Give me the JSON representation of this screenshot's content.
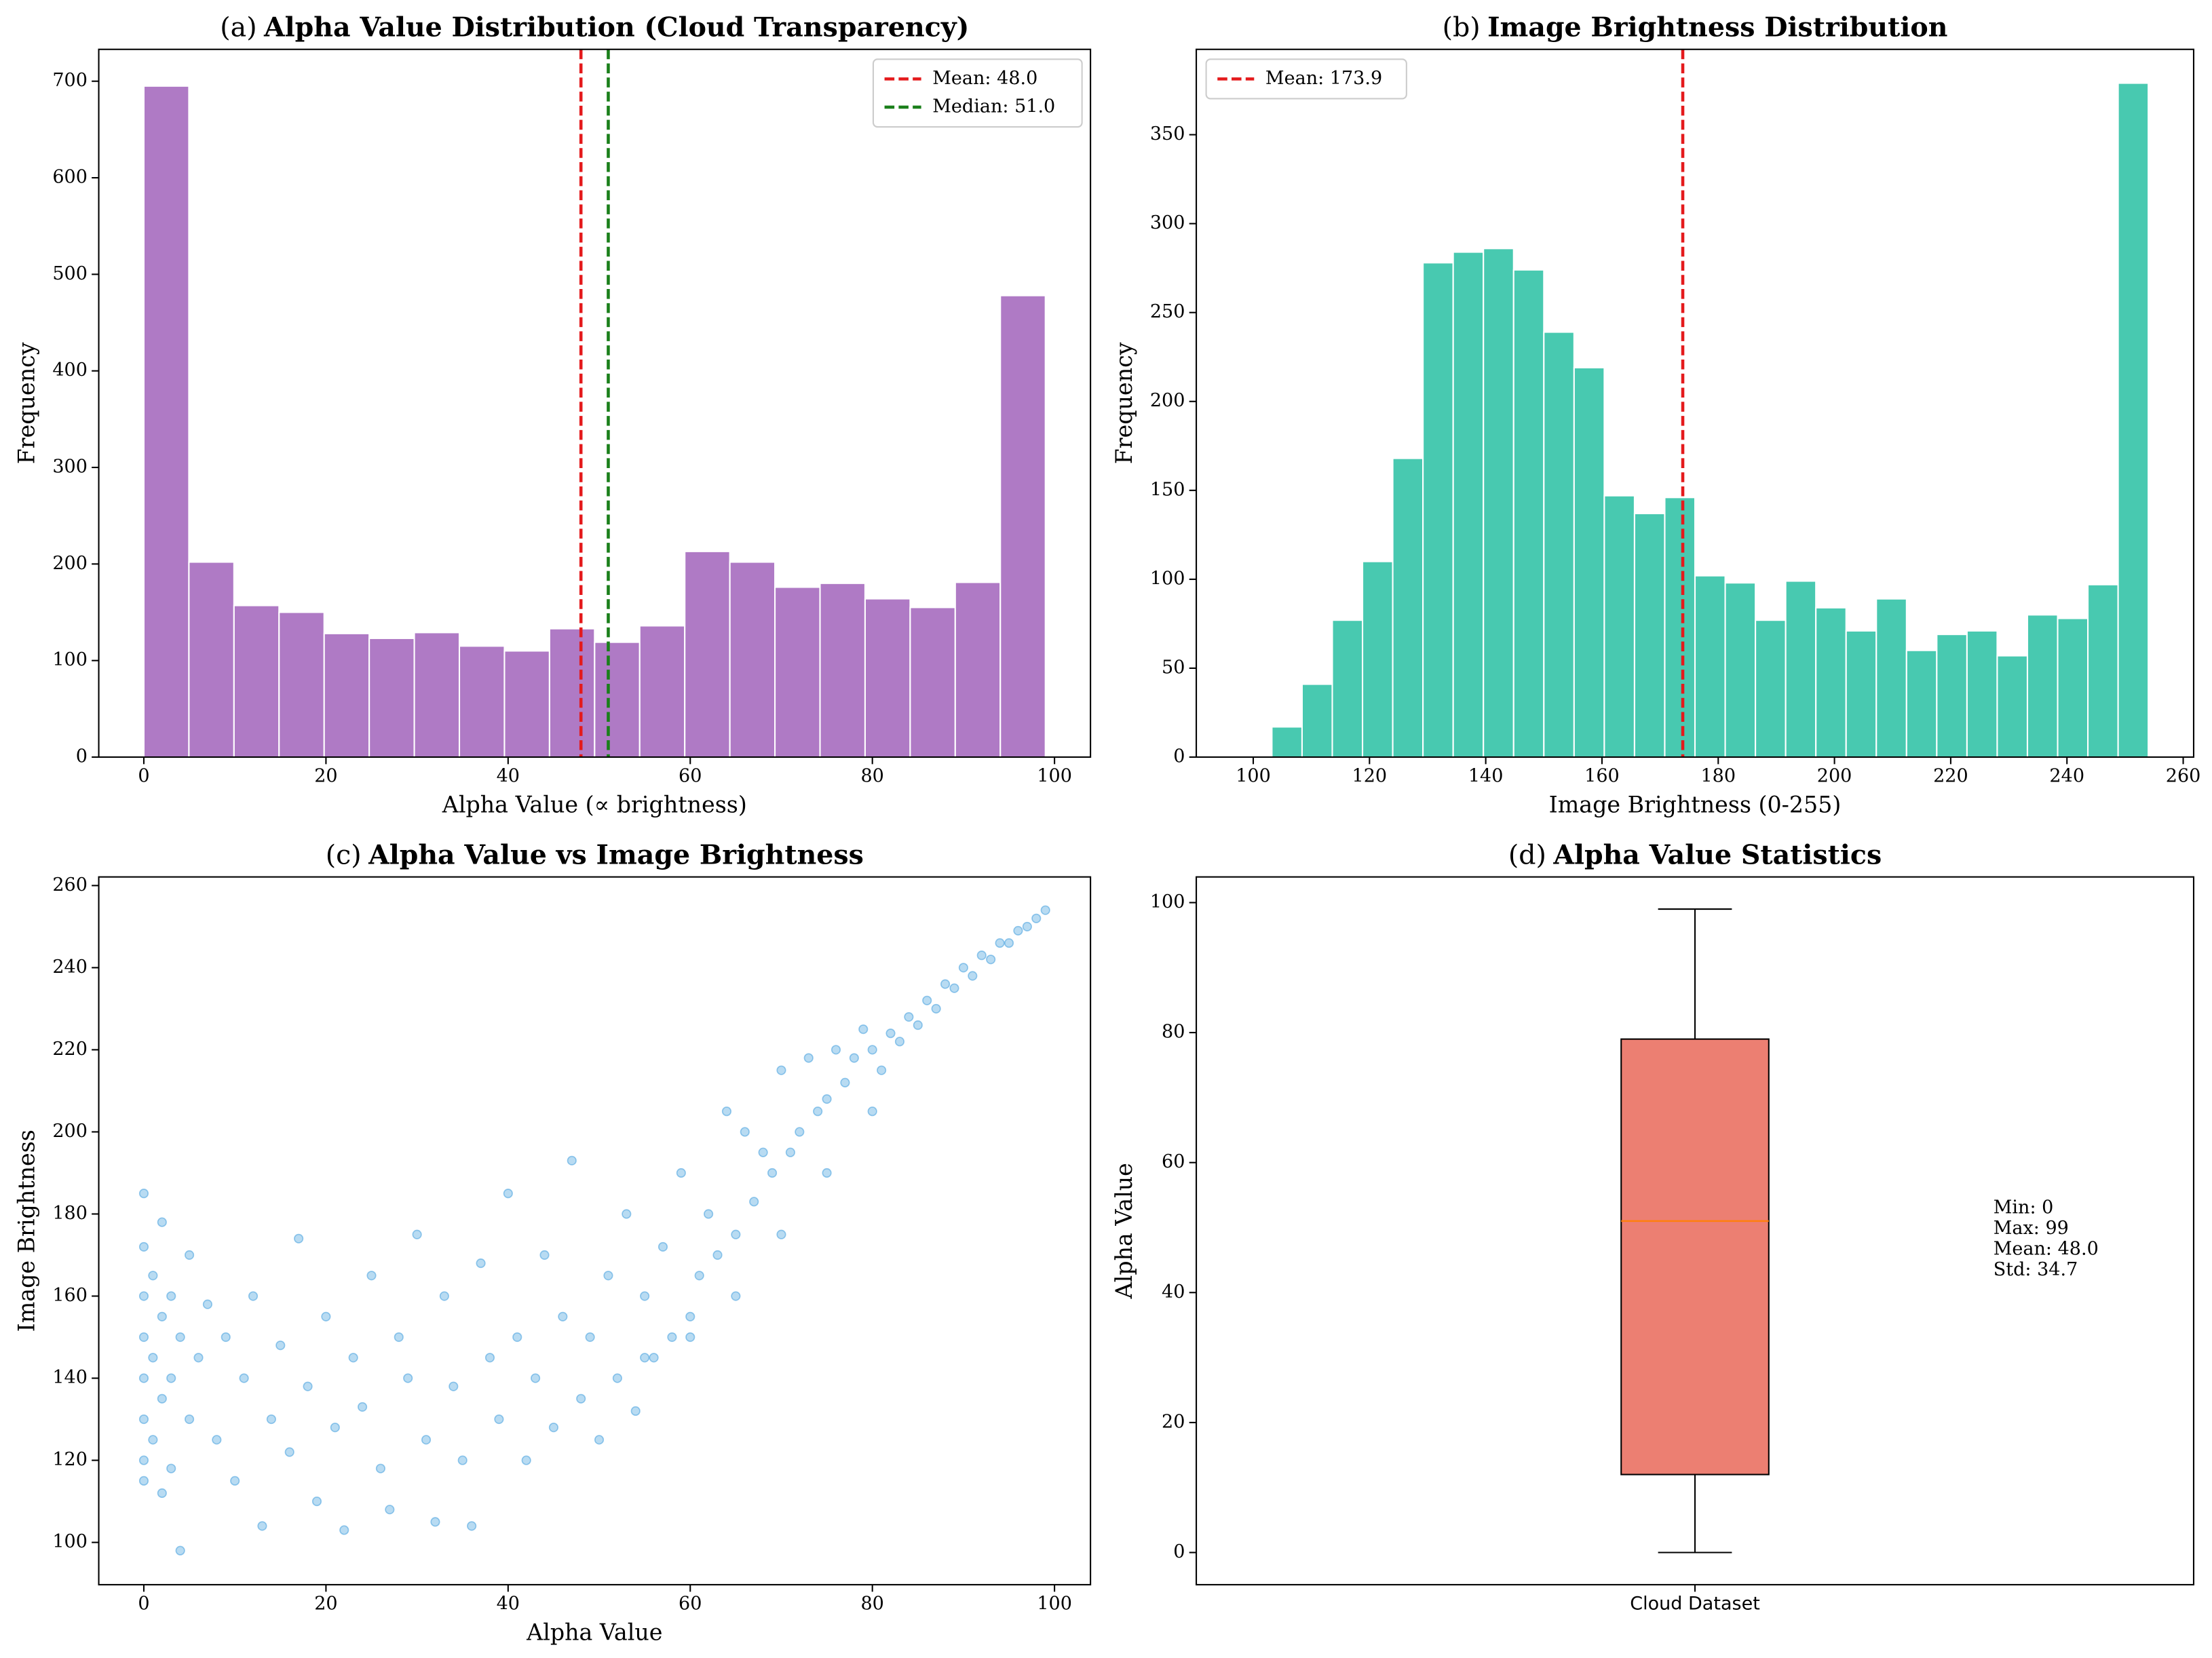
{
  "chart_data": [
    {
      "type": "histogram",
      "panel_label": "(a)",
      "title": "Alpha Value Distribution (Cloud Transparency)",
      "x_label": "Alpha Value (∝ brightness)",
      "y_label": "Frequency",
      "color": "#af7ac5",
      "bins": [
        0,
        4.95,
        9.9,
        14.85,
        19.8,
        24.75,
        29.7,
        34.65,
        39.6,
        44.55,
        49.5,
        54.45,
        59.4,
        64.35,
        69.3,
        74.25,
        79.2,
        84.15,
        89.1,
        94.05,
        99
      ],
      "values": [
        695,
        202,
        157,
        150,
        128,
        123,
        129,
        115,
        110,
        133,
        119,
        136,
        213,
        202,
        176,
        180,
        164,
        155,
        181,
        478
      ],
      "vlines": [
        {
          "name": "Mean: 48.0",
          "x": 48.0,
          "color": "#e41a1c"
        },
        {
          "name": "Median: 51.0",
          "x": 51.0,
          "color": "#1a7f1a"
        }
      ],
      "legend": "upper right",
      "xlim": [
        -4.95,
        103.95
      ],
      "ylim": [
        0,
        733
      ],
      "xticks": [
        0,
        20,
        40,
        60,
        80,
        100
      ],
      "yticks": [
        0,
        100,
        200,
        300,
        400,
        500,
        600,
        700
      ]
    },
    {
      "type": "histogram",
      "panel_label": "(b)",
      "title": "Image Brightness Distribution",
      "x_label": "Image Brightness (0-255)",
      "y_label": "Frequency",
      "color": "#48c9b0",
      "bins": [
        98,
        103.2,
        108.4,
        113.6,
        118.8,
        124,
        129.2,
        134.4,
        139.6,
        144.8,
        150,
        155.2,
        160.4,
        165.6,
        170.8,
        176,
        181.2,
        186.4,
        191.6,
        196.8,
        202,
        207.2,
        212.4,
        217.6,
        222.8,
        228,
        233.2,
        238.4,
        243.6,
        248.8,
        254
      ],
      "values": [
        0,
        17,
        41,
        77,
        110,
        168,
        278,
        284,
        286,
        274,
        239,
        219,
        147,
        137,
        146,
        102,
        98,
        77,
        99,
        84,
        71,
        89,
        60,
        69,
        71,
        57,
        80,
        78,
        97,
        379
      ],
      "vlines": [
        {
          "name": "Mean: 173.9",
          "x": 173.9,
          "color": "#e41a1c"
        }
      ],
      "legend": "upper left",
      "xlim": [
        90.2,
        261.8
      ],
      "ylim": [
        0,
        398
      ],
      "xticks": [
        100,
        120,
        140,
        160,
        180,
        200,
        220,
        240,
        260
      ],
      "yticks": [
        0,
        50,
        100,
        150,
        200,
        250,
        300,
        350
      ]
    },
    {
      "type": "scatter",
      "panel_label": "(c)",
      "title": "Alpha Value vs Image Brightness",
      "x_label": "Alpha Value",
      "y_label": "Image Brightness",
      "color": "#3498db",
      "x": [
        0,
        0,
        0,
        0,
        0,
        0,
        0,
        0,
        1,
        1,
        1,
        2,
        2,
        2,
        2,
        3,
        3,
        3,
        4,
        4,
        5,
        5,
        6,
        7,
        8,
        9,
        10,
        11,
        12,
        13,
        14,
        15,
        16,
        17,
        18,
        19,
        20,
        21,
        22,
        23,
        24,
        25,
        26,
        27,
        28,
        29,
        30,
        31,
        32,
        33,
        34,
        35,
        36,
        37,
        38,
        39,
        40,
        41,
        42,
        43,
        44,
        45,
        46,
        47,
        48,
        49,
        50,
        51,
        52,
        53,
        54,
        55,
        56,
        57,
        58,
        59,
        60,
        61,
        62,
        63,
        64,
        65,
        66,
        67,
        68,
        69,
        70,
        71,
        72,
        73,
        74,
        75,
        76,
        77,
        78,
        79,
        80,
        81,
        82,
        83,
        84,
        85,
        86,
        87,
        88,
        89,
        90,
        91,
        92,
        93,
        94,
        95,
        96,
        97,
        98,
        99,
        55,
        60,
        65,
        70,
        75,
        80
      ],
      "values": [
        185,
        172,
        160,
        150,
        140,
        130,
        120,
        115,
        165,
        145,
        125,
        178,
        155,
        135,
        112,
        160,
        140,
        118,
        98,
        150,
        170,
        130,
        145,
        158,
        125,
        150,
        115,
        140,
        160,
        104,
        130,
        148,
        122,
        174,
        138,
        110,
        155,
        128,
        103,
        145,
        133,
        165,
        118,
        108,
        150,
        140,
        175,
        125,
        105,
        160,
        138,
        120,
        104,
        168,
        145,
        130,
        185,
        150,
        120,
        140,
        170,
        128,
        155,
        193,
        135,
        150,
        125,
        165,
        140,
        180,
        132,
        160,
        145,
        172,
        150,
        190,
        155,
        165,
        180,
        170,
        205,
        175,
        200,
        183,
        195,
        190,
        215,
        195,
        200,
        218,
        205,
        208,
        220,
        212,
        218,
        225,
        220,
        215,
        224,
        222,
        228,
        226,
        232,
        230,
        236,
        235,
        240,
        238,
        243,
        242,
        246,
        246,
        249,
        250,
        252,
        254,
        145,
        150,
        160,
        175,
        190,
        205
      ],
      "xlim": [
        -4.95,
        103.95
      ],
      "ylim": [
        89.7,
        262.1
      ],
      "xticks": [
        0,
        20,
        40,
        60,
        80,
        100
      ],
      "yticks": [
        100,
        120,
        140,
        160,
        180,
        200,
        220,
        240,
        260
      ]
    },
    {
      "type": "box",
      "panel_label": "(d)",
      "title": "Alpha Value Statistics",
      "y_label": "Alpha Value",
      "categories": [
        "Cloud Dataset"
      ],
      "color": "#ec7f72",
      "median_color": "#ff7f0e",
      "box": {
        "min": 0,
        "q1": 12,
        "median": 51,
        "q3": 79,
        "max": 99
      },
      "annotation": [
        "Min: 0",
        "Max: 99",
        "Mean: 48.0",
        "Std: 34.7"
      ],
      "ylim": [
        -4.95,
        103.95
      ],
      "yticks": [
        0,
        20,
        40,
        60,
        80,
        100
      ]
    }
  ]
}
